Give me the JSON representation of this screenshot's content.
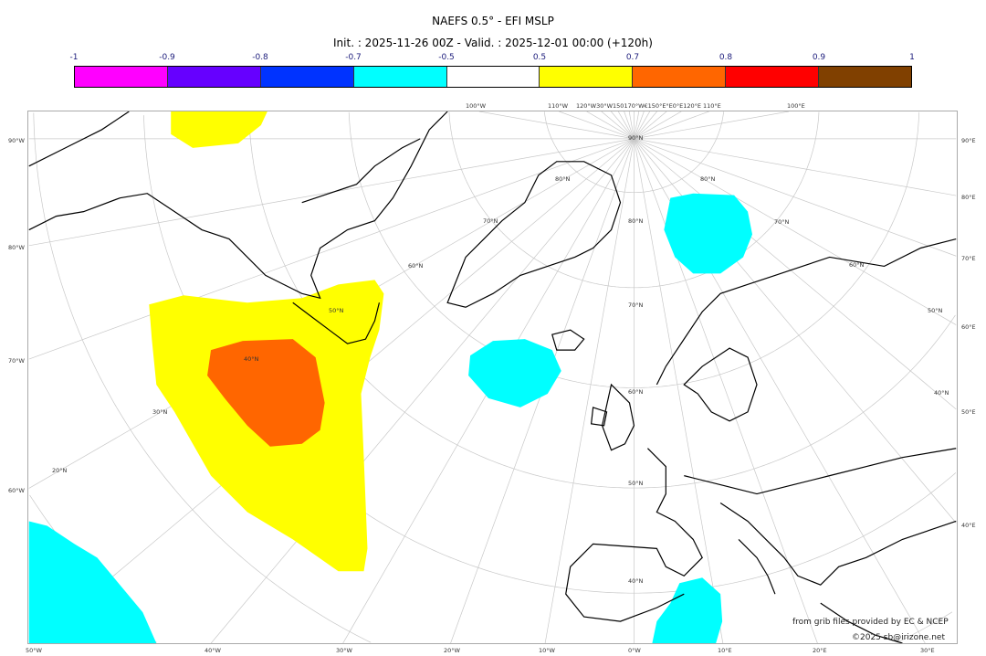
{
  "title": "NAEFS 0.5° - EFI MSLP",
  "subtitle": "Init. : 2025-11-26 00Z - Valid. : 2025-12-01 00:00 (+120h)",
  "colorbar": {
    "ticks": [
      "-1",
      "-0.9",
      "-0.8",
      "-0.7",
      "-0.5",
      "0.5",
      "0.7",
      "0.8",
      "0.9",
      "1"
    ],
    "colors": [
      "#ff00ff",
      "#6600ff",
      "#0033ff",
      "#00ffff",
      "#ffffff",
      "#ffff00",
      "#ff6600",
      "#ff0000",
      "#804000"
    ]
  },
  "map": {
    "bottom_labels": [
      "50°W",
      "40°W",
      "30°W",
      "20°W",
      "10°W",
      "0°W",
      "10°E",
      "20°E",
      "30°E"
    ],
    "left_labels": [
      "90°W",
      "80°W",
      "70°W",
      "60°W"
    ],
    "right_labels": [
      "90°E",
      "80°E",
      "70°E",
      "60°E",
      "50°E",
      "40°E"
    ],
    "top_labels": [
      "100°W",
      "110°W",
      "120°W30°W150170°W€150°E°E0°E120°E",
      "110°E",
      "100°E"
    ],
    "inner_labels": [
      "90°N",
      "80°N",
      "70°N",
      "60°N",
      "50°N",
      "40°N",
      "80°N",
      "70°N",
      "60°N",
      "50°N",
      "40°N",
      "30°N",
      "20°N",
      "70°N",
      "60°N",
      "50°N",
      "80°N"
    ]
  },
  "credits": {
    "source": "from grib files provided by EC & NCEP",
    "copyright": "©2025 sb@irizone.net"
  }
}
